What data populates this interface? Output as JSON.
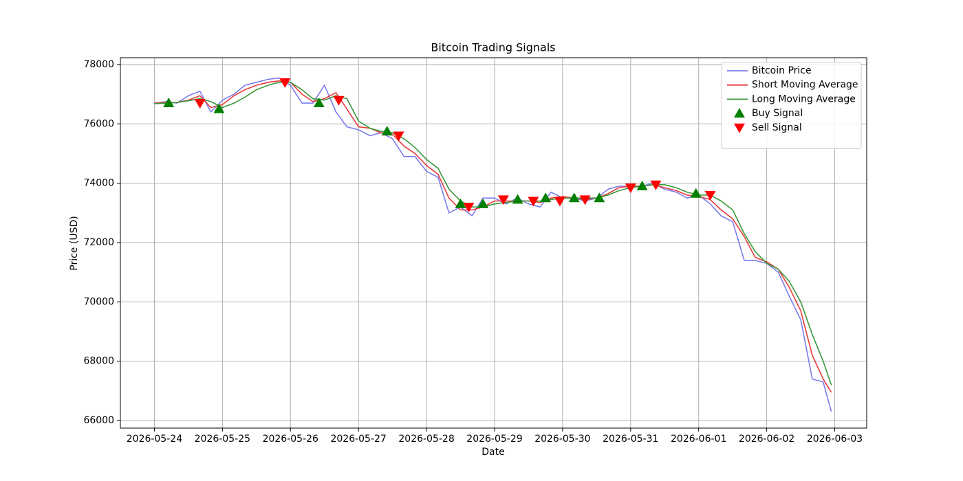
{
  "chart_data": {
    "type": "line",
    "title": "Bitcoin Trading Signals",
    "x_label": "Date",
    "y_label": "Price (USD)",
    "x": [
      0,
      0.17,
      0.33,
      0.5,
      0.67,
      0.83,
      1,
      1.17,
      1.33,
      1.5,
      1.67,
      1.83,
      2,
      2.17,
      2.33,
      2.5,
      2.67,
      2.83,
      3,
      3.17,
      3.33,
      3.5,
      3.67,
      3.83,
      4,
      4.17,
      4.33,
      4.5,
      4.67,
      4.83,
      5,
      5.17,
      5.33,
      5.5,
      5.67,
      5.83,
      6,
      6.17,
      6.33,
      6.5,
      6.67,
      6.83,
      7,
      7.17,
      7.33,
      7.5,
      7.67,
      7.83,
      8,
      8.17,
      8.33,
      8.5,
      8.67,
      8.83,
      9,
      9.17,
      9.33,
      9.5,
      9.67,
      9.83,
      9.95
    ],
    "series": [
      {
        "name": "Bitcoin Price",
        "color": "#7b7bee",
        "width": 1.6,
        "values": [
          76700,
          76750,
          76700,
          76950,
          77100,
          76400,
          76800,
          77000,
          77300,
          77400,
          77500,
          77550,
          77300,
          76700,
          76700,
          77300,
          76400,
          75900,
          75800,
          75600,
          75700,
          75500,
          74900,
          74900,
          74400,
          74200,
          73000,
          73200,
          72900,
          73500,
          73500,
          73300,
          73500,
          73300,
          73200,
          73700,
          73500,
          73500,
          73400,
          73500,
          73800,
          73900,
          73900,
          73900,
          74000,
          73800,
          73700,
          73500,
          73600,
          73300,
          72900,
          72700,
          71400,
          71400,
          71300,
          71000,
          70200,
          69400,
          67400,
          67300,
          66300
        ]
      },
      {
        "name": "Short Moving Average",
        "color": "#e83a3a",
        "width": 1.6,
        "values": [
          76700,
          76720,
          76720,
          76800,
          76950,
          76550,
          76650,
          76950,
          77150,
          77300,
          77400,
          77450,
          77400,
          77000,
          76750,
          76850,
          77050,
          76500,
          75900,
          75850,
          75700,
          75650,
          75250,
          75000,
          74600,
          74300,
          73500,
          73100,
          73100,
          73200,
          73400,
          73400,
          73400,
          73400,
          73350,
          73500,
          73550,
          73500,
          73450,
          73500,
          73650,
          73850,
          73900,
          73900,
          73950,
          73850,
          73750,
          73600,
          73550,
          73450,
          73100,
          72800,
          72200,
          71500,
          71350,
          71100,
          70500,
          69700,
          68200,
          67400,
          66950
        ]
      },
      {
        "name": "Long Moving Average",
        "color": "#3a993a",
        "width": 1.6,
        "values": [
          76680,
          76700,
          76720,
          76780,
          76850,
          76750,
          76550,
          76700,
          76900,
          77150,
          77300,
          77400,
          77400,
          77150,
          76850,
          76800,
          76950,
          76850,
          76100,
          75850,
          75750,
          75700,
          75500,
          75200,
          74800,
          74500,
          73800,
          73400,
          73200,
          73200,
          73300,
          73350,
          73400,
          73400,
          73400,
          73450,
          73500,
          73500,
          73500,
          73500,
          73600,
          73750,
          73850,
          73900,
          73950,
          73950,
          73850,
          73700,
          73600,
          73600,
          73400,
          73100,
          72300,
          71700,
          71300,
          71100,
          70700,
          70000,
          68900,
          68000,
          67200
        ]
      },
      {
        "name": "Buy Signal",
        "color": "#008000",
        "marker": "up",
        "x": [
          0.21,
          0.95,
          2.42,
          3.42,
          4.5,
          4.83,
          5.34,
          5.75,
          6.17,
          6.54,
          7.17,
          7.96
        ],
        "values": [
          76700,
          76500,
          76700,
          75750,
          73300,
          73300,
          73450,
          73500,
          73500,
          73500,
          73900,
          73650
        ]
      },
      {
        "name": "Sell Signal",
        "color": "#ff0000",
        "marker": "down",
        "x": [
          0.67,
          1.92,
          2.71,
          3.59,
          4.62,
          5.13,
          5.57,
          5.96,
          6.33,
          7.0,
          7.37,
          8.17
        ],
        "values": [
          76700,
          77400,
          76800,
          75600,
          73200,
          73450,
          73400,
          73400,
          73450,
          73850,
          73950,
          73600
        ]
      }
    ],
    "xlim": [
      -0.5,
      10.47
    ],
    "xticks": [
      {
        "value": 0,
        "label": "2026-05-24"
      },
      {
        "value": 1,
        "label": "2026-05-25"
      },
      {
        "value": 2,
        "label": "2026-05-26"
      },
      {
        "value": 3,
        "label": "2026-05-27"
      },
      {
        "value": 4,
        "label": "2026-05-28"
      },
      {
        "value": 5,
        "label": "2026-05-29"
      },
      {
        "value": 6,
        "label": "2026-05-30"
      },
      {
        "value": 7,
        "label": "2026-05-31"
      },
      {
        "value": 8,
        "label": "2026-06-01"
      },
      {
        "value": 9,
        "label": "2026-06-02"
      },
      {
        "value": 10,
        "label": "2026-06-03"
      }
    ],
    "ylim": [
      65745,
      78230
    ],
    "yticks": [
      66000,
      68000,
      70000,
      72000,
      74000,
      76000,
      78000
    ],
    "grid": true,
    "legend": "upper right"
  }
}
